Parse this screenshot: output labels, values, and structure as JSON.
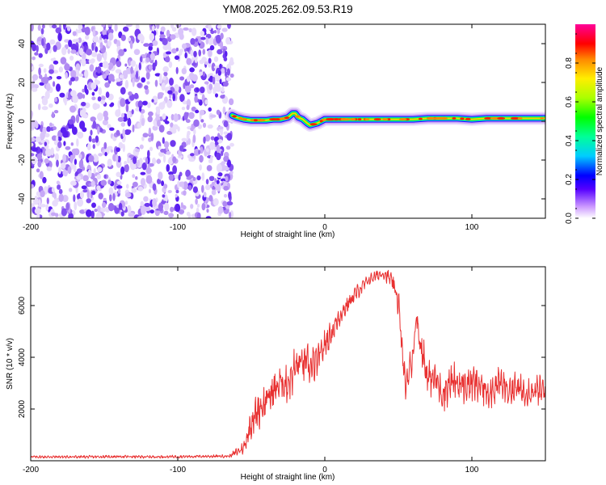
{
  "figure": {
    "title": "YM08.2025.262.09.53.R19"
  },
  "chart_data": [
    {
      "type": "heatmap",
      "title": "",
      "xlabel": "Height of straight line (km)",
      "ylabel": "Frequency (Hz)",
      "xlim": [
        -200,
        150
      ],
      "ylim": [
        -50,
        50
      ],
      "xticks": [
        -200,
        -100,
        0,
        100
      ],
      "xtick_labels": [
        "-200",
        "-100",
        "0",
        "100"
      ],
      "yticks": [
        -40,
        -20,
        0,
        20,
        40
      ],
      "ytick_labels": [
        "-40",
        "-20",
        "0",
        "20",
        "40"
      ],
      "noise_region_x": [
        -200,
        -63
      ],
      "colorbar": {
        "label": "Normalized spectral amplitude",
        "range": [
          0.0,
          1.0
        ],
        "ticks": [
          0.0,
          0.2,
          0.4,
          0.6,
          0.8
        ],
        "tick_labels": [
          "0.0",
          "0.2",
          "0.4",
          "0.6",
          "0.8"
        ]
      },
      "ridge": {
        "x": [
          -63,
          -60,
          -55,
          -50,
          -45,
          -40,
          -35,
          -30,
          -25,
          -22,
          -20,
          -18,
          -15,
          -12,
          -10,
          -5,
          0,
          10,
          20,
          30,
          40,
          50,
          60,
          70,
          80,
          90,
          100,
          110,
          120,
          130,
          140,
          150
        ],
        "y": [
          3,
          2,
          1,
          0.5,
          0.5,
          0.5,
          1,
          1,
          2,
          4,
          4,
          2,
          1,
          -1,
          -2,
          -1,
          1,
          1,
          1,
          1,
          1,
          1,
          1,
          1.5,
          1.5,
          1.5,
          1,
          1.5,
          1.5,
          1.5,
          1.5,
          1.5
        ]
      }
    },
    {
      "type": "line",
      "title": "",
      "xlabel": "Height of straight line (km)",
      "ylabel": "SNR (10 * v/v)",
      "xlim": [
        -200,
        150
      ],
      "ylim": [
        0,
        7500
      ],
      "xticks": [
        -200,
        -100,
        0,
        100
      ],
      "xtick_labels": [
        "-200",
        "-100",
        "0",
        "100"
      ],
      "yticks": [
        2000,
        4000,
        6000
      ],
      "ytick_labels": [
        "2000",
        "4000",
        "6000"
      ],
      "color": "#e83030",
      "series": [
        {
          "name": "SNR",
          "x": [
            -200,
            -180,
            -160,
            -140,
            -120,
            -100,
            -80,
            -65,
            -55,
            -50,
            -45,
            -40,
            -35,
            -30,
            -25,
            -20,
            -15,
            -10,
            -5,
            0,
            5,
            10,
            15,
            20,
            25,
            30,
            35,
            40,
            45,
            50,
            52,
            55,
            58,
            60,
            62,
            65,
            70,
            75,
            80,
            85,
            90,
            95,
            100,
            105,
            110,
            115,
            120,
            125,
            130,
            135,
            140,
            145,
            150
          ],
          "y": [
            150,
            150,
            150,
            160,
            150,
            160,
            170,
            180,
            500,
            1500,
            2000,
            2300,
            2700,
            3000,
            3000,
            3600,
            3800,
            3600,
            3800,
            4500,
            5000,
            5600,
            6000,
            6400,
            6700,
            7000,
            7150,
            7250,
            7000,
            6200,
            4600,
            2800,
            3600,
            4200,
            5600,
            4600,
            3200,
            3200,
            2600,
            3000,
            3000,
            2900,
            3000,
            2900,
            2700,
            2800,
            3000,
            2700,
            2800,
            2700,
            2700,
            2700,
            2700
          ],
          "ripple_amplitude": [
            50,
            50,
            50,
            50,
            50,
            50,
            50,
            60,
            250,
            600,
            700,
            700,
            700,
            700,
            700,
            800,
            800,
            800,
            700,
            500,
            450,
            400,
            350,
            300,
            250,
            200,
            200,
            200,
            300,
            600,
            600,
            400,
            600,
            700,
            800,
            800,
            700,
            600,
            700,
            700,
            700,
            700,
            700,
            700,
            650,
            650,
            600,
            600,
            600,
            550,
            550,
            550,
            500
          ]
        }
      ]
    }
  ]
}
